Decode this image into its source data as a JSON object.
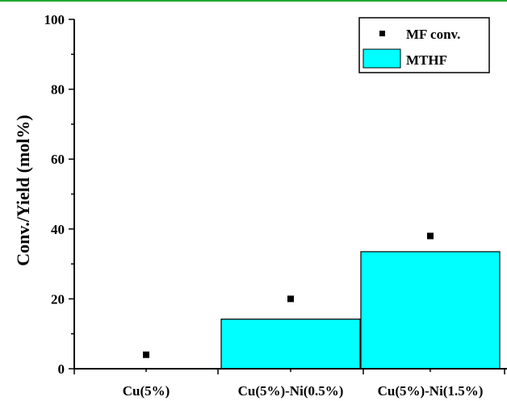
{
  "chart_data": {
    "type": "bar",
    "categories": [
      "Cu(5%)",
      "Cu(5%)-Ni(0.5%)",
      "Cu(5%)-Ni(1.5%)"
    ],
    "series": [
      {
        "name": "MTHF",
        "kind": "bar",
        "values": [
          0,
          14.2,
          33.5
        ]
      },
      {
        "name": "MF conv.",
        "kind": "scatter",
        "marker": "square",
        "values": [
          4,
          20,
          38
        ]
      }
    ],
    "ylabel": "Conv./Yield (mol%)",
    "ylim": [
      0,
      100
    ],
    "yticks": [
      0,
      20,
      40,
      60,
      80,
      100
    ],
    "grid": false,
    "legend_position": "top-right"
  },
  "colors": {
    "bar_fill": "#00ffff",
    "top_line": "#22aa33",
    "marker": "#000000"
  }
}
